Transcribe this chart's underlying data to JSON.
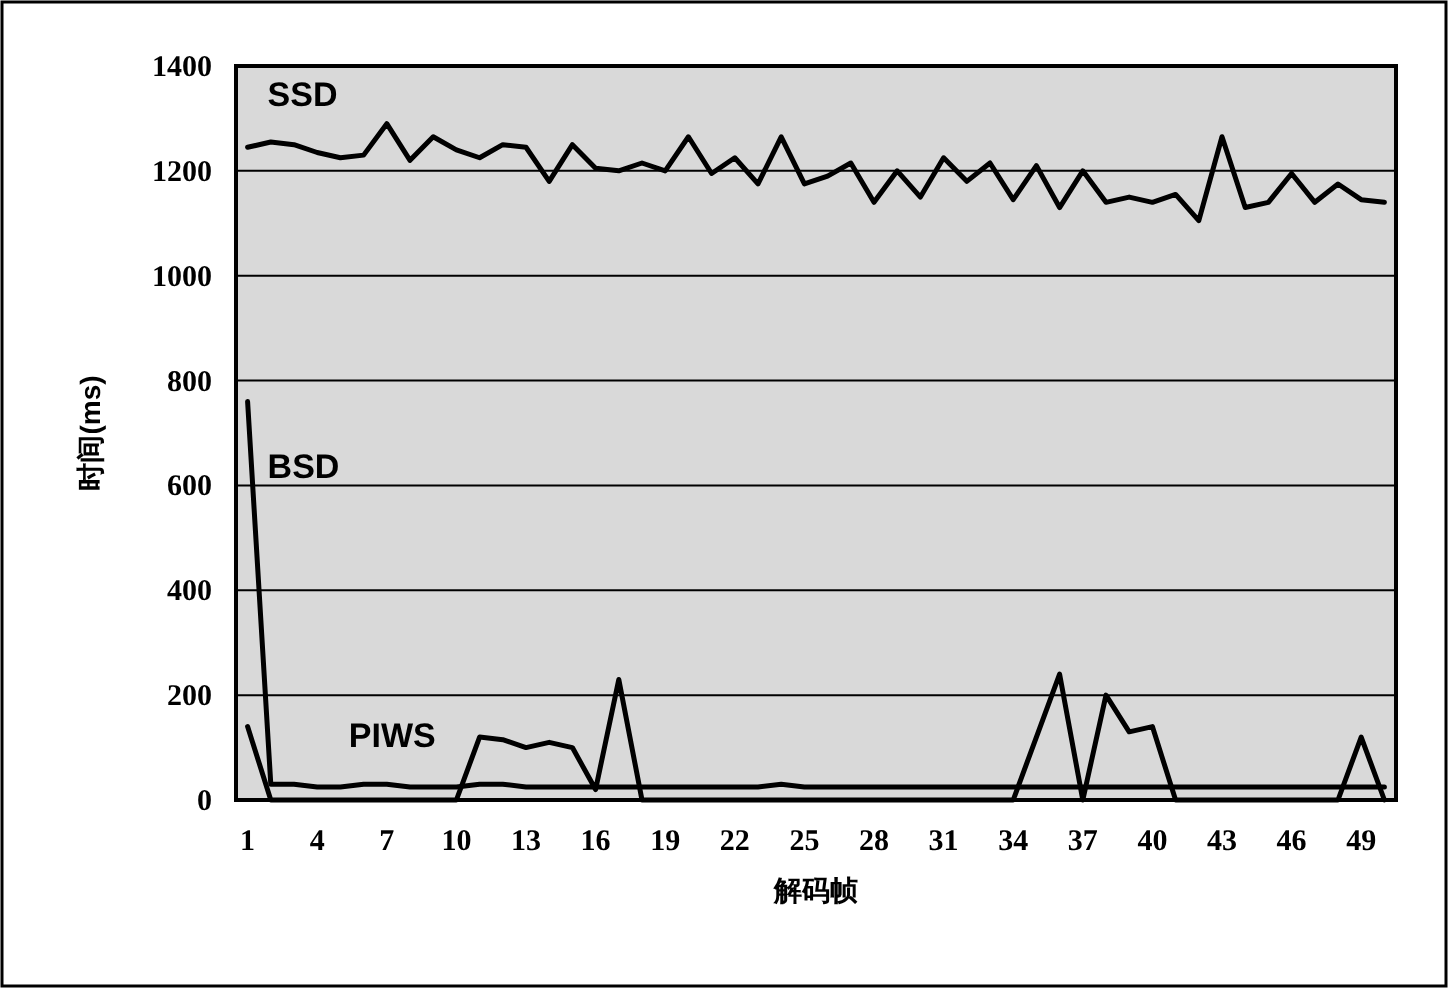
{
  "chart_data": {
    "type": "line",
    "xlabel": "解码帧",
    "ylabel": "时间(ms)",
    "x": [
      1,
      2,
      3,
      4,
      5,
      6,
      7,
      8,
      9,
      10,
      11,
      12,
      13,
      14,
      15,
      16,
      17,
      18,
      19,
      20,
      21,
      22,
      23,
      24,
      25,
      26,
      27,
      28,
      29,
      30,
      31,
      32,
      33,
      34,
      35,
      36,
      37,
      38,
      39,
      40,
      41,
      42,
      43,
      44,
      45,
      46,
      47,
      48,
      49,
      50
    ],
    "xlim": [
      0.5,
      50.5
    ],
    "xticks": [
      1,
      4,
      7,
      10,
      13,
      16,
      19,
      22,
      25,
      28,
      31,
      34,
      37,
      40,
      43,
      46,
      49
    ],
    "ylim": [
      0,
      1400
    ],
    "yticks": [
      0,
      200,
      400,
      600,
      800,
      1000,
      1200,
      1400
    ],
    "grid": "y",
    "marker": "none",
    "line_style": "solid",
    "series": [
      {
        "name": "SSD",
        "color": "#000000",
        "values": [
          1245,
          1255,
          1250,
          1235,
          1225,
          1230,
          1290,
          1220,
          1265,
          1240,
          1225,
          1250,
          1245,
          1180,
          1250,
          1205,
          1200,
          1215,
          1200,
          1265,
          1195,
          1225,
          1175,
          1265,
          1175,
          1190,
          1215,
          1140,
          1200,
          1150,
          1225,
          1180,
          1215,
          1145,
          1210,
          1130,
          1200,
          1140,
          1150,
          1140,
          1155,
          1105,
          1265,
          1130,
          1140,
          1195,
          1140,
          1175,
          1145,
          1140
        ]
      },
      {
        "name": "BSD",
        "color": "#000000",
        "values": [
          760,
          30,
          30,
          25,
          25,
          30,
          30,
          25,
          25,
          25,
          30,
          30,
          25,
          25,
          25,
          25,
          25,
          25,
          25,
          25,
          25,
          25,
          25,
          30,
          25,
          25,
          25,
          25,
          25,
          25,
          25,
          25,
          25,
          25,
          25,
          25,
          25,
          25,
          25,
          25,
          25,
          25,
          25,
          25,
          25,
          25,
          25,
          25,
          25,
          25
        ]
      },
      {
        "name": "PIWS",
        "color": "#000000",
        "values": [
          140,
          0,
          0,
          0,
          0,
          0,
          0,
          0,
          0,
          0,
          120,
          115,
          100,
          110,
          100,
          20,
          230,
          0,
          0,
          0,
          0,
          0,
          0,
          0,
          0,
          0,
          0,
          0,
          0,
          0,
          0,
          0,
          0,
          0,
          120,
          240,
          0,
          200,
          130,
          140,
          0,
          0,
          0,
          0,
          0,
          0,
          0,
          0,
          120,
          0
        ]
      }
    ]
  }
}
